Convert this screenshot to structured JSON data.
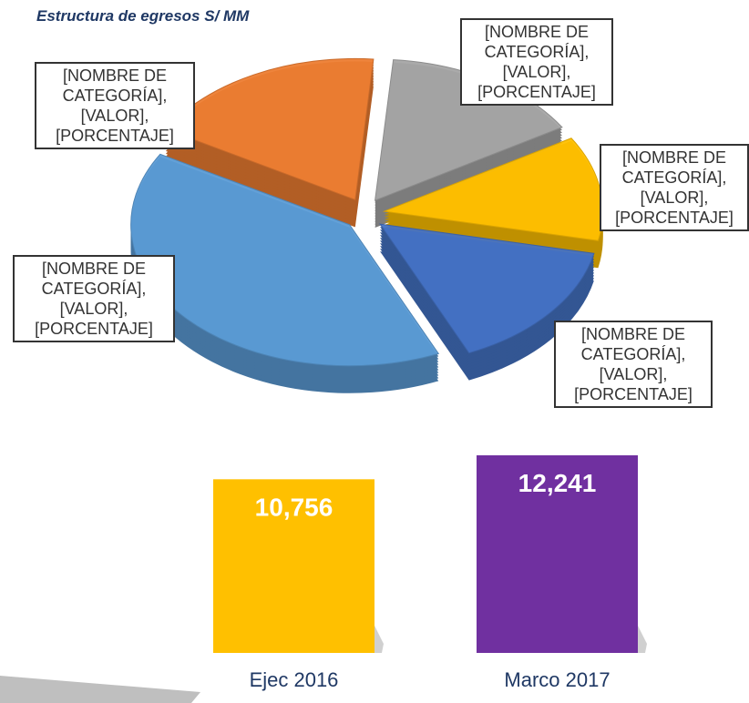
{
  "chart_data": [
    {
      "type": "pie",
      "title": "Estructura de egresos S/ MM",
      "values": [
        18,
        15,
        12,
        15,
        40
      ],
      "value_labels": [
        "[NOMBRE DE CATEGORÍA], [VALOR], [PORCENTAJE]",
        "[NOMBRE DE CATEGORÍA], [VALOR], [PORCENTAJE]",
        "[NOMBRE DE CATEGORÍA], [VALOR], [PORCENTAJE]",
        "[NOMBRE DE CATEGORÍA], [VALOR], [PORCENTAJE]",
        "[NOMBRE DE CATEGORÍA], [VALOR], [PORCENTAJE]"
      ],
      "colors": [
        "#ed7d31",
        "#a5a5a5",
        "#ffc000",
        "#4472c4",
        "#5b9bd5"
      ]
    },
    {
      "type": "bar",
      "categories": [
        "Ejec 2016",
        "Marco 2017"
      ],
      "values": [
        10756,
        12241
      ],
      "value_labels": [
        "10,756",
        "12,241"
      ],
      "colors": [
        "#ffc000",
        "#7030a0"
      ]
    }
  ]
}
